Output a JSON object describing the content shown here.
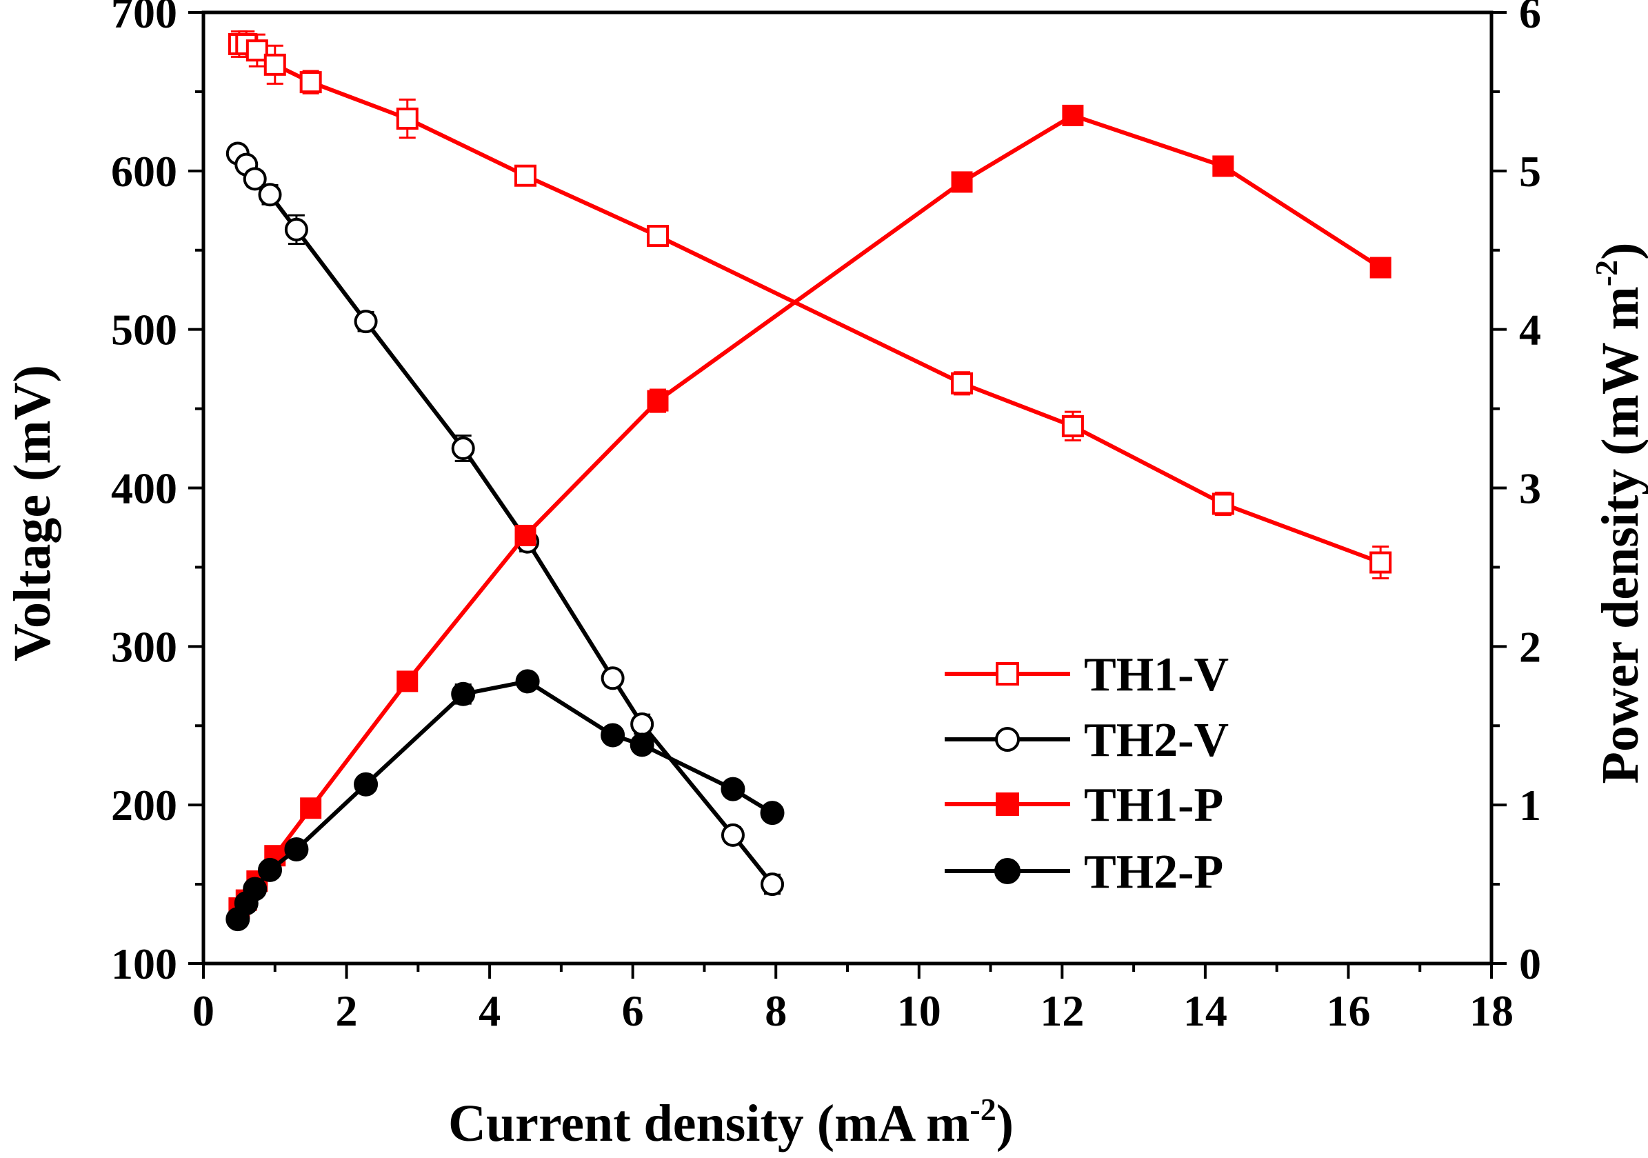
{
  "chart_data": {
    "type": "line",
    "xlabel": "Current density (mA m",
    "xlabel_sup": "-2",
    "xlabel_tail": ")",
    "ylabel": "Voltage (mV)",
    "y2label": "Power density (mW m",
    "y2label_sup": "-2",
    "y2label_tail": ")",
    "xlim": [
      0,
      18
    ],
    "ylim": [
      100,
      700
    ],
    "y2lim": [
      0,
      6
    ],
    "xticks": [
      0,
      2,
      4,
      6,
      8,
      10,
      12,
      14,
      16,
      18
    ],
    "yticks": [
      100,
      200,
      300,
      400,
      500,
      600,
      700
    ],
    "y2ticks": [
      0,
      1,
      2,
      3,
      4,
      5,
      6
    ],
    "grid": false,
    "legend_position": "lower-right",
    "series": [
      {
        "name": "TH1-V",
        "axis": "left",
        "color": "#ff0000",
        "marker": "open-square",
        "x": [
          0.5,
          0.6,
          0.75,
          1.0,
          1.5,
          2.85,
          4.5,
          6.35,
          10.6,
          12.15,
          14.25,
          16.45
        ],
        "y": [
          680,
          680,
          676,
          667,
          656,
          633,
          597,
          559,
          466,
          439,
          390,
          353
        ],
        "err": [
          8,
          8,
          10,
          12,
          7,
          12,
          5,
          4,
          7,
          9,
          7,
          10
        ]
      },
      {
        "name": "TH2-V",
        "axis": "left",
        "color": "#000000",
        "marker": "open-circle",
        "x": [
          0.48,
          0.6,
          0.72,
          0.93,
          1.3,
          2.27,
          3.63,
          4.53,
          5.72,
          6.13,
          7.4,
          7.95
        ],
        "y": [
          611,
          604,
          595,
          585,
          563,
          505,
          425,
          366,
          280,
          251,
          181,
          150
        ],
        "err": [
          3,
          4,
          5,
          6,
          9,
          6,
          8,
          6,
          5,
          6,
          5,
          6
        ]
      },
      {
        "name": "TH1-P",
        "axis": "right",
        "color": "#ff0000",
        "marker": "filled-square",
        "x": [
          0.5,
          0.6,
          0.75,
          1.0,
          1.5,
          2.85,
          4.5,
          6.35,
          10.6,
          12.15,
          14.25,
          16.45
        ],
        "y": [
          0.35,
          0.4,
          0.52,
          0.68,
          0.98,
          1.78,
          2.7,
          3.55,
          4.93,
          5.35,
          5.03,
          4.39
        ],
        "err": [
          0,
          0,
          0,
          0,
          0,
          0,
          0,
          0.07,
          0,
          0,
          0,
          0
        ]
      },
      {
        "name": "TH2-P",
        "axis": "right",
        "color": "#000000",
        "marker": "filled-circle",
        "x": [
          0.48,
          0.6,
          0.72,
          0.93,
          1.3,
          2.27,
          3.63,
          4.53,
          5.72,
          6.13,
          7.4,
          7.95
        ],
        "y": [
          0.28,
          0.38,
          0.47,
          0.59,
          0.72,
          1.13,
          1.7,
          1.78,
          1.44,
          1.38,
          1.1,
          0.95
        ],
        "err": [
          0,
          0,
          0,
          0,
          0,
          0,
          0.06,
          0,
          0,
          0,
          0,
          0
        ]
      }
    ]
  }
}
